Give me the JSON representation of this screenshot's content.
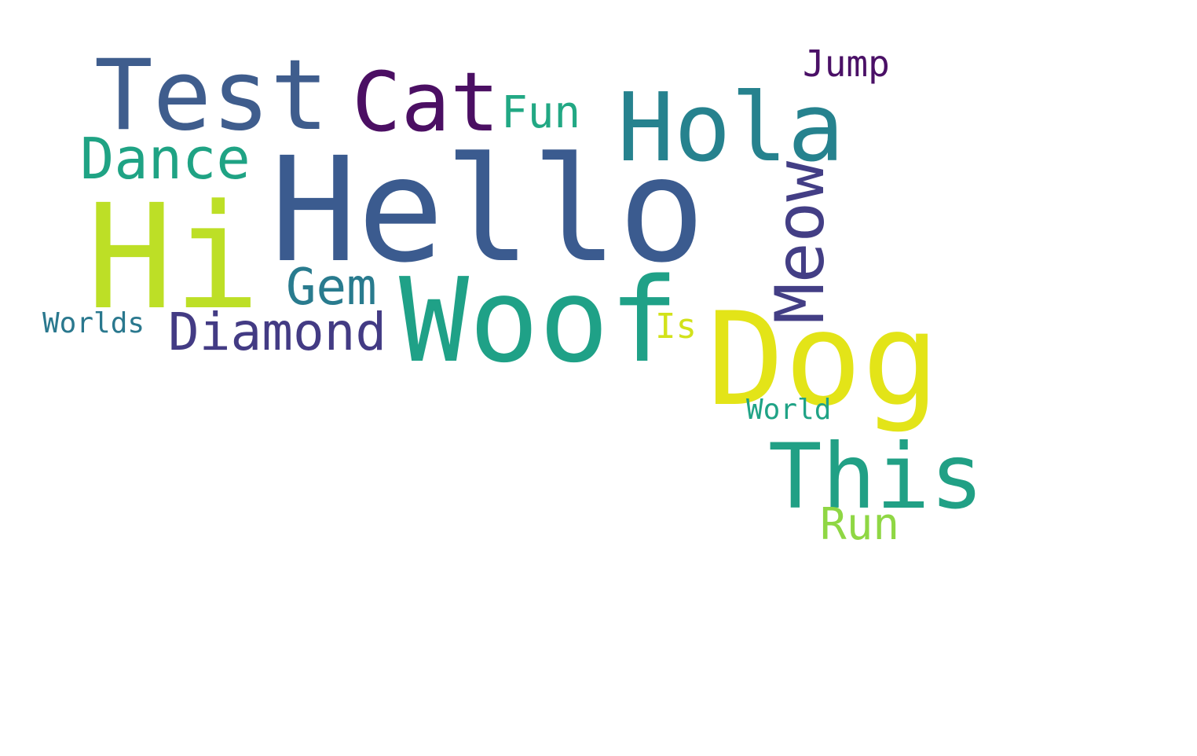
{
  "words": [
    {
      "id": "hello",
      "text": "Hello",
      "color": "#3b5b8f"
    },
    {
      "id": "hi",
      "text": "Hi",
      "color": "#bddf26"
    },
    {
      "id": "woof",
      "text": "Woof",
      "color": "#1fa187"
    },
    {
      "id": "dog",
      "text": "Dog",
      "color": "#e3e418"
    },
    {
      "id": "test",
      "text": "Test",
      "color": "#3f5d8d"
    },
    {
      "id": "hola",
      "text": "Hola",
      "color": "#26828e"
    },
    {
      "id": "this",
      "text": "This",
      "color": "#21a085"
    },
    {
      "id": "meow",
      "text": "Meow",
      "color": "#433e85"
    },
    {
      "id": "cat",
      "text": "Cat",
      "color": "#4b0f63"
    },
    {
      "id": "dance",
      "text": "Dance",
      "color": "#1fa384"
    },
    {
      "id": "diamond",
      "text": "Diamond",
      "color": "#433b84"
    },
    {
      "id": "gem",
      "text": "Gem",
      "color": "#297b8e"
    },
    {
      "id": "fun",
      "text": "Fun",
      "color": "#22a884"
    },
    {
      "id": "run",
      "text": "Run",
      "color": "#8fd744"
    },
    {
      "id": "jump",
      "text": "Jump",
      "color": "#4a1066"
    },
    {
      "id": "is",
      "text": "Is",
      "color": "#d2e21b"
    },
    {
      "id": "worlds",
      "text": "Worlds",
      "color": "#2a788e"
    },
    {
      "id": "world",
      "text": "World",
      "color": "#20a386"
    }
  ]
}
